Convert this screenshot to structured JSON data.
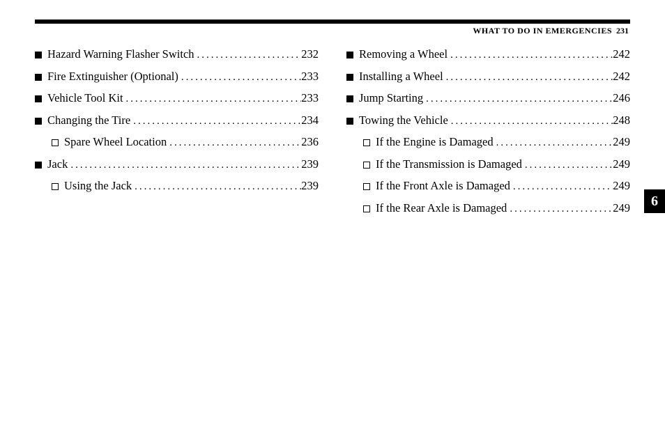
{
  "header": {
    "title": "WHAT TO DO IN EMERGENCIES",
    "page": "231"
  },
  "tab": "6",
  "dots": "....................................................................",
  "left": [
    {
      "level": 0,
      "label": "Hazard Warning Flasher Switch",
      "page": "232"
    },
    {
      "level": 0,
      "label": "Fire Extinguisher (Optional)",
      "page": "233"
    },
    {
      "level": 0,
      "label": "Vehicle Tool Kit",
      "page": "233"
    },
    {
      "level": 0,
      "label": "Changing the Tire",
      "page": "234"
    },
    {
      "level": 1,
      "label": "Spare Wheel Location",
      "page": "236"
    },
    {
      "level": 0,
      "label": "Jack",
      "page": "239"
    },
    {
      "level": 1,
      "label": "Using the Jack",
      "page": "239"
    }
  ],
  "right": [
    {
      "level": 0,
      "label": "Removing a Wheel",
      "page": "242"
    },
    {
      "level": 0,
      "label": "Installing a Wheel",
      "page": "242"
    },
    {
      "level": 0,
      "label": "Jump Starting",
      "page": "246"
    },
    {
      "level": 0,
      "label": "Towing the Vehicle",
      "page": "248"
    },
    {
      "level": 1,
      "label": "If the Engine is Damaged",
      "page": "249"
    },
    {
      "level": 1,
      "label": "If the Transmission is Damaged",
      "page": "249"
    },
    {
      "level": 1,
      "label": "If the Front Axle is Damaged",
      "page": "249"
    },
    {
      "level": 1,
      "label": "If the Rear Axle is Damaged",
      "page": "249"
    }
  ]
}
